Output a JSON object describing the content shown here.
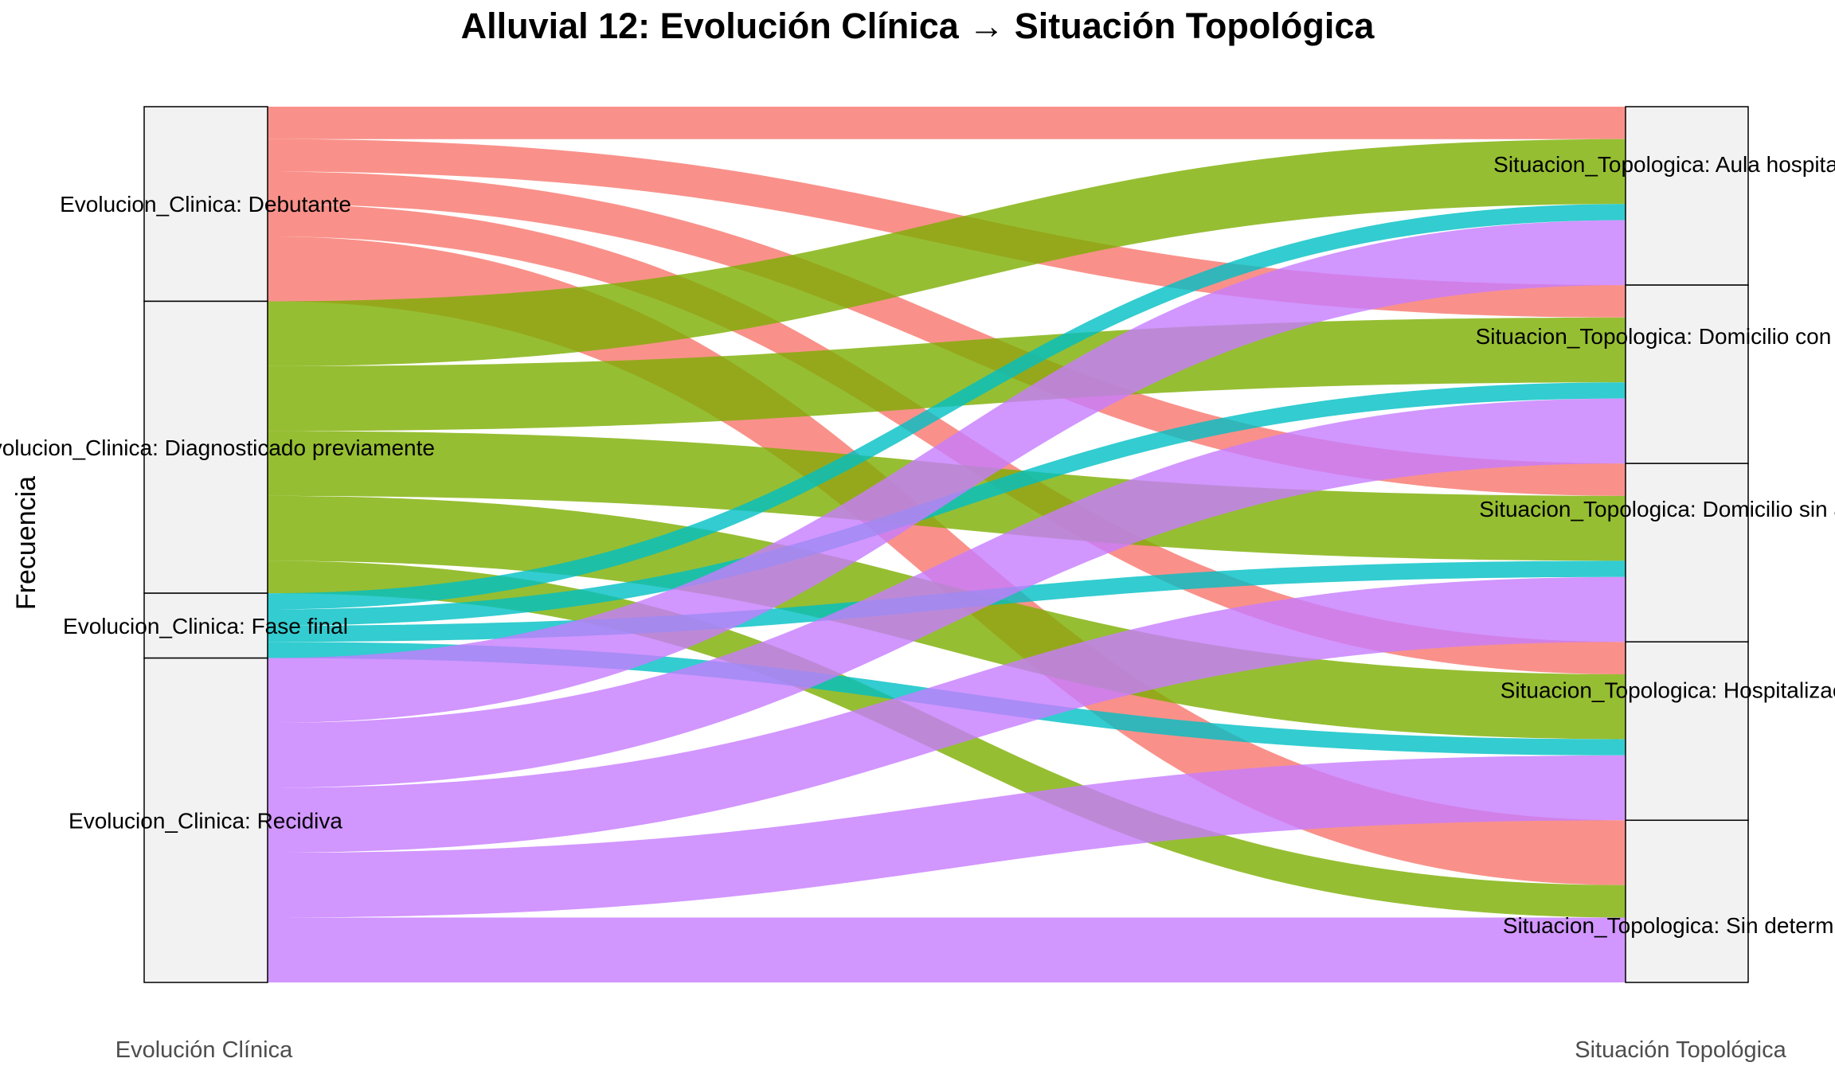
{
  "chart_data": {
    "type": "alluvial",
    "title": "Alluvial 12: Evolución Clínica → Situación Topológica",
    "ylabel": "Frecuencia",
    "axes": [
      {
        "name": "Evolución Clínica",
        "strata": [
          {
            "key": "Debutante",
            "label": "Evolucion_Clinica: Debutante",
            "value": 6
          },
          {
            "key": "Diagnosticado previamente",
            "label": "Evolucion_Clinica: Diagnosticado previamente",
            "value": 9
          },
          {
            "key": "Fase final",
            "label": "Evolucion_Clinica: Fase final",
            "value": 2
          },
          {
            "key": "Recidiva",
            "label": "Evolucion_Clinica: Recidiva",
            "value": 10
          }
        ]
      },
      {
        "name": "Situación Topológica",
        "strata": [
          {
            "key": "Aula hospitalaria",
            "label": "Situacion_Topologica: Aula hospitalaria",
            "value": 5.5
          },
          {
            "key": "Domicilio con apoyo",
            "label": "Situacion_Topologica: Domicilio con apoyo",
            "value": 5.5
          },
          {
            "key": "Domicilio sin apoyo",
            "label": "Situacion_Topologica: Domicilio sin apoyo",
            "value": 5.5
          },
          {
            "key": "Hospitalización",
            "label": "Situacion_Topologica: Hospitalización",
            "value": 5.5
          },
          {
            "key": "Sin determinar",
            "label": "Situacion_Topologica: Sin determinar",
            "value": 5
          }
        ]
      }
    ],
    "colors": {
      "Debutante": "#F8766D",
      "Diagnosticado previamente": "#7CAE00",
      "Fase final": "#00BFC4",
      "Recidiva": "#C77CFF"
    },
    "flows": [
      {
        "from": "Debutante",
        "to": "Aula hospitalaria",
        "value": 1
      },
      {
        "from": "Debutante",
        "to": "Domicilio con apoyo",
        "value": 1
      },
      {
        "from": "Debutante",
        "to": "Domicilio sin apoyo",
        "value": 1
      },
      {
        "from": "Debutante",
        "to": "Hospitalización",
        "value": 1
      },
      {
        "from": "Debutante",
        "to": "Sin determinar",
        "value": 2
      },
      {
        "from": "Diagnosticado previamente",
        "to": "Aula hospitalaria",
        "value": 2
      },
      {
        "from": "Diagnosticado previamente",
        "to": "Domicilio con apoyo",
        "value": 2
      },
      {
        "from": "Diagnosticado previamente",
        "to": "Domicilio sin apoyo",
        "value": 2
      },
      {
        "from": "Diagnosticado previamente",
        "to": "Hospitalización",
        "value": 2
      },
      {
        "from": "Diagnosticado previamente",
        "to": "Sin determinar",
        "value": 1
      },
      {
        "from": "Fase final",
        "to": "Aula hospitalaria",
        "value": 0.5
      },
      {
        "from": "Fase final",
        "to": "Domicilio con apoyo",
        "value": 0.5
      },
      {
        "from": "Fase final",
        "to": "Domicilio sin apoyo",
        "value": 0.5
      },
      {
        "from": "Fase final",
        "to": "Hospitalización",
        "value": 0.5
      },
      {
        "from": "Recidiva",
        "to": "Aula hospitalaria",
        "value": 2
      },
      {
        "from": "Recidiva",
        "to": "Domicilio con apoyo",
        "value": 2
      },
      {
        "from": "Recidiva",
        "to": "Domicilio sin apoyo",
        "value": 2
      },
      {
        "from": "Recidiva",
        "to": "Hospitalización",
        "value": 2
      },
      {
        "from": "Recidiva",
        "to": "Sin determinar",
        "value": 2
      }
    ],
    "legend": "none",
    "grid": false
  }
}
